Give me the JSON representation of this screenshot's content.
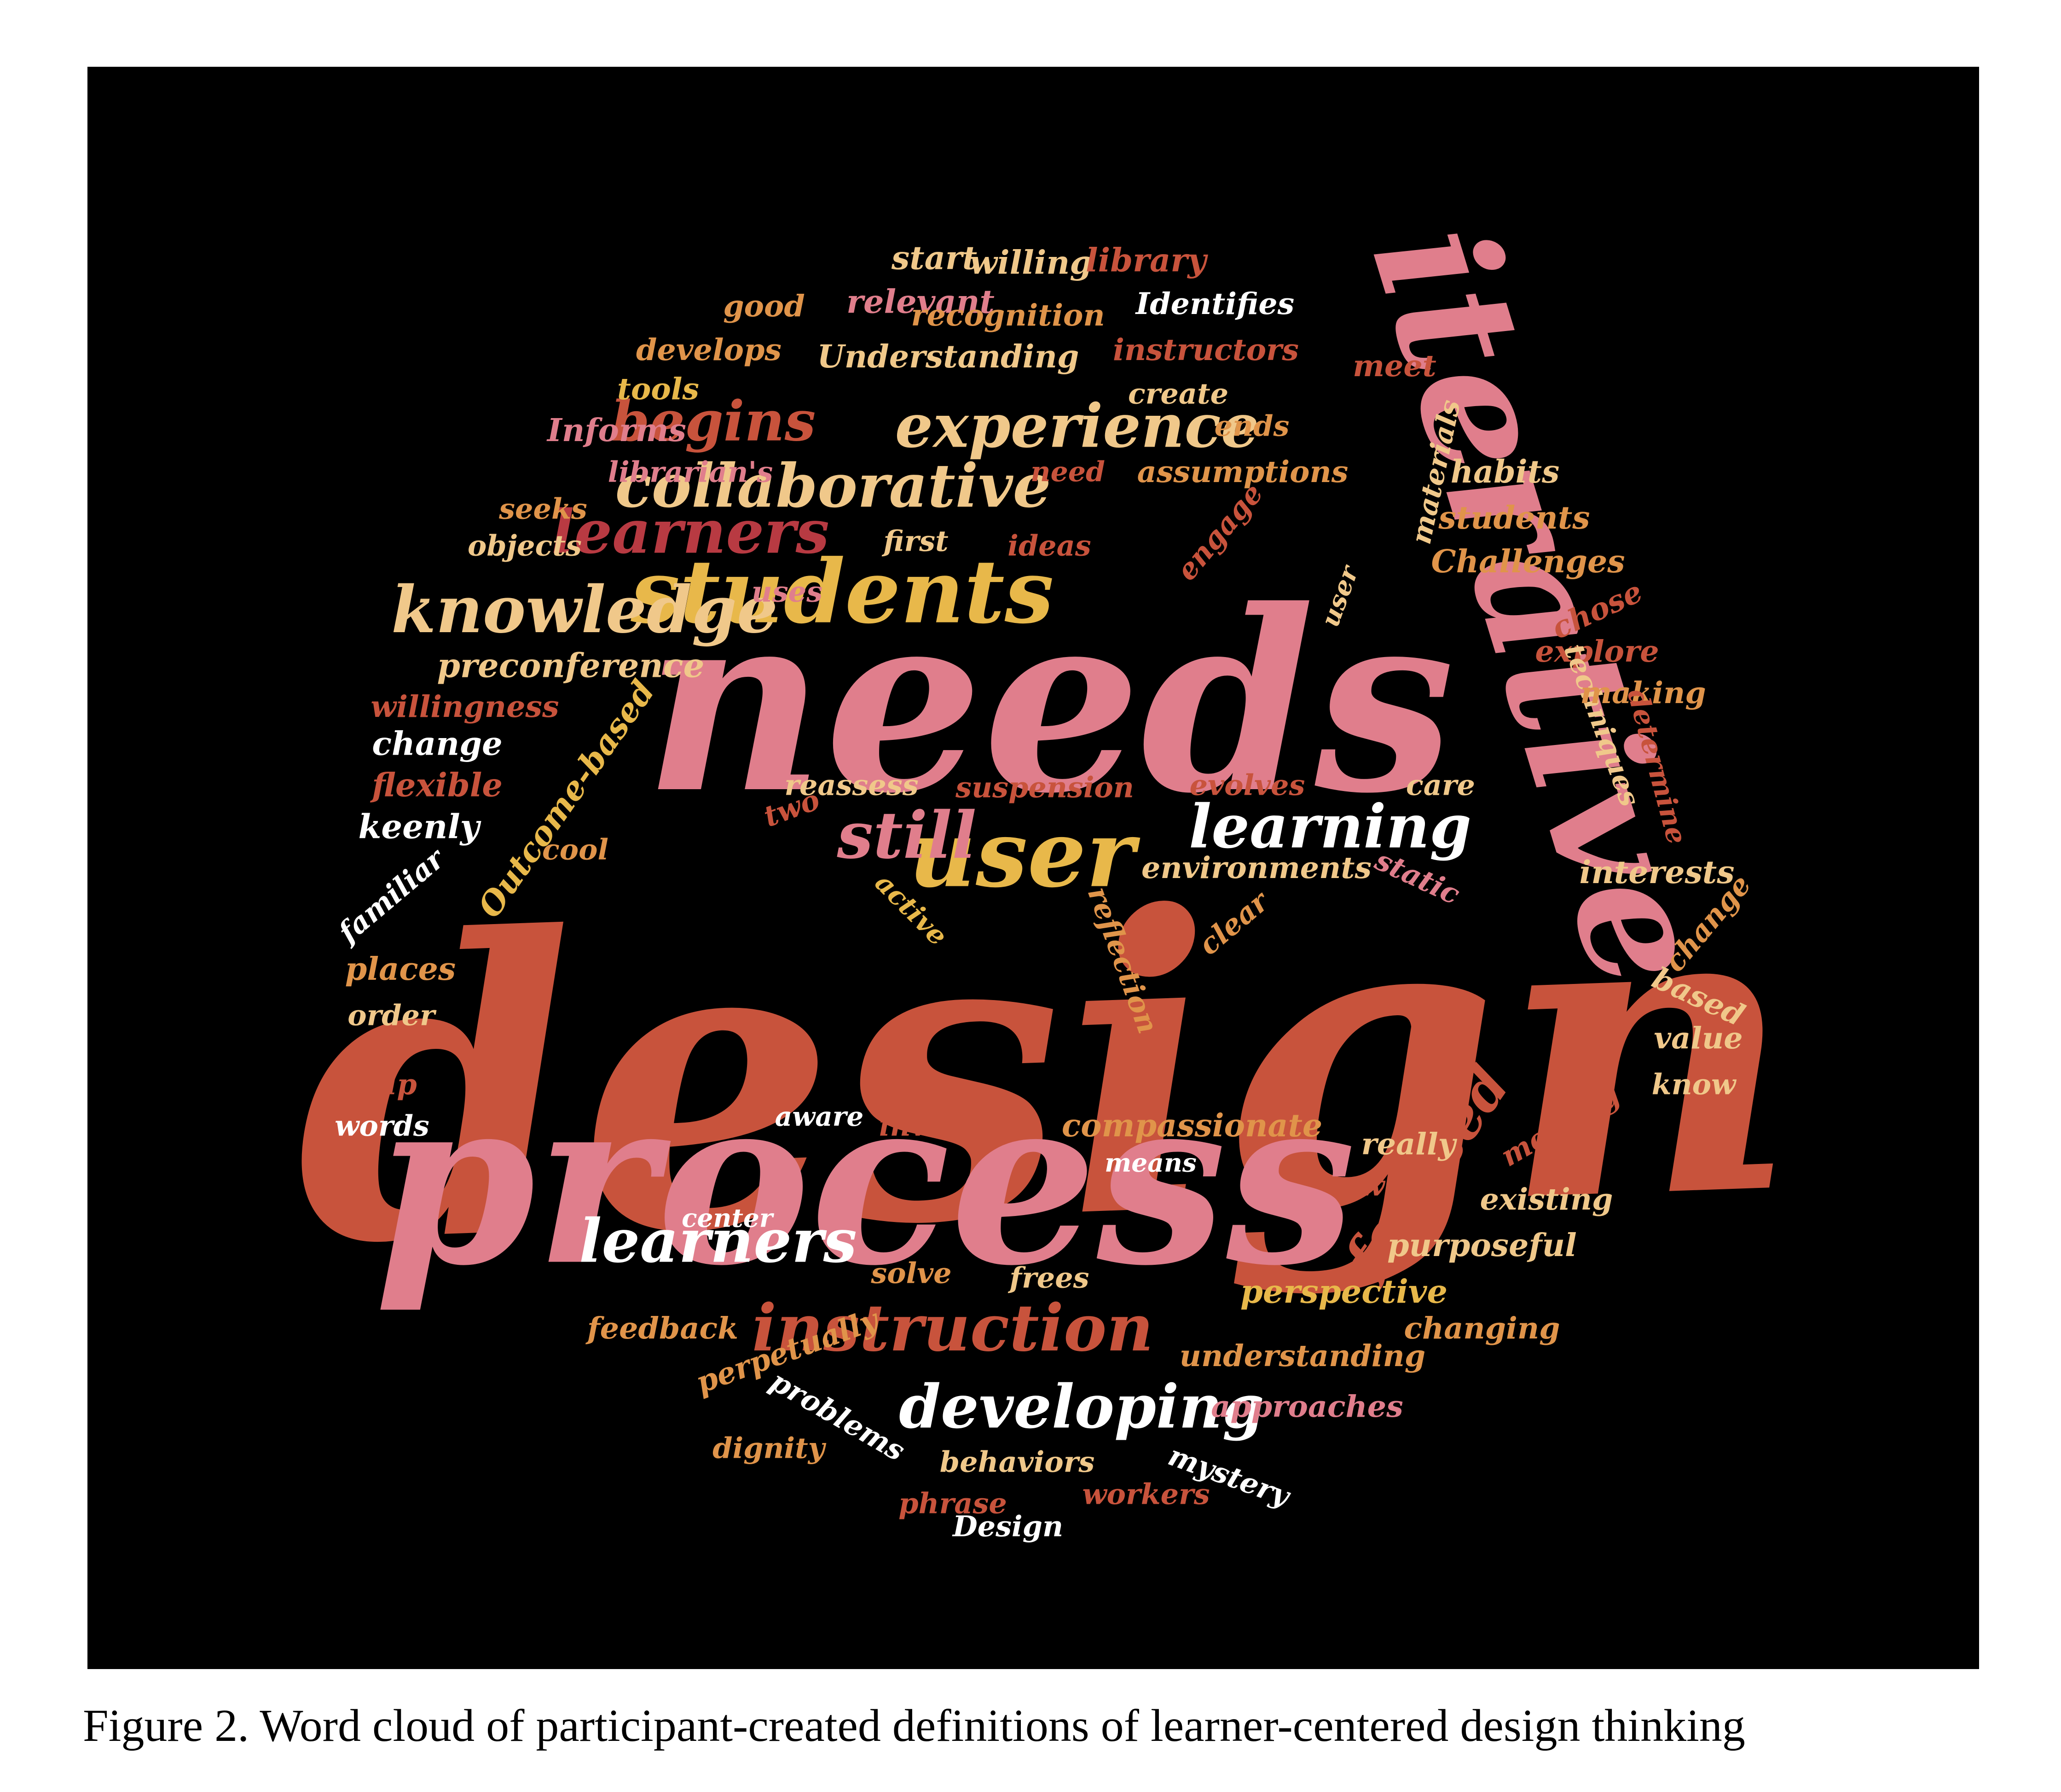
{
  "caption": "Figure 2. Word cloud of participant-created definitions of learner-centered design thinking",
  "colors": {
    "background": "#000000",
    "red": "#c8533c",
    "pink": "#e07e8c",
    "dark_red": "#b83a42",
    "orange": "#e0944a",
    "yellow": "#e8b84a",
    "beige": "#f0c88a",
    "white": "#ffffff"
  },
  "words": [
    {
      "text": "design",
      "color": "red"
    },
    {
      "text": "needs",
      "color": "pink"
    },
    {
      "text": "process",
      "color": "pink"
    },
    {
      "text": "iterative",
      "color": "pink"
    },
    {
      "text": "students",
      "color": "yellow"
    },
    {
      "text": "user",
      "color": "yellow"
    },
    {
      "text": "learning",
      "color": "white"
    },
    {
      "text": "knowledge",
      "color": "beige"
    },
    {
      "text": "collaborative",
      "color": "beige"
    },
    {
      "text": "experience",
      "color": "beige"
    },
    {
      "text": "begins",
      "color": "red"
    },
    {
      "text": "learners",
      "color": "dark_red"
    },
    {
      "text": "learners",
      "color": "white"
    },
    {
      "text": "instruction",
      "color": "red"
    },
    {
      "text": "developing",
      "color": "white"
    },
    {
      "text": "focused",
      "color": "red"
    },
    {
      "text": "still",
      "color": "pink"
    },
    {
      "text": "start",
      "color": "beige"
    },
    {
      "text": "willing",
      "color": "beige"
    },
    {
      "text": "library",
      "color": "red"
    },
    {
      "text": "relevant",
      "color": "pink"
    },
    {
      "text": "good",
      "color": "orange"
    },
    {
      "text": "recognition",
      "color": "orange"
    },
    {
      "text": "Identifies",
      "color": "white"
    },
    {
      "text": "develops",
      "color": "orange"
    },
    {
      "text": "Understanding",
      "color": "beige"
    },
    {
      "text": "instructors",
      "color": "red"
    },
    {
      "text": "meet",
      "color": "red"
    },
    {
      "text": "tools",
      "color": "yellow"
    },
    {
      "text": "create",
      "color": "beige"
    },
    {
      "text": "Informs",
      "color": "pink"
    },
    {
      "text": "ends",
      "color": "orange"
    },
    {
      "text": "materials",
      "color": "beige"
    },
    {
      "text": "librarian's",
      "color": "pink"
    },
    {
      "text": "need",
      "color": "red"
    },
    {
      "text": "assumptions",
      "color": "orange"
    },
    {
      "text": "habits",
      "color": "beige"
    },
    {
      "text": "seeks",
      "color": "orange"
    },
    {
      "text": "students",
      "color": "orange"
    },
    {
      "text": "objects",
      "color": "beige"
    },
    {
      "text": "first",
      "color": "beige"
    },
    {
      "text": "ideas",
      "color": "red"
    },
    {
      "text": "engage",
      "color": "red"
    },
    {
      "text": "Challenges",
      "color": "orange"
    },
    {
      "text": "uses",
      "color": "pink"
    },
    {
      "text": "user",
      "color": "beige"
    },
    {
      "text": "chose",
      "color": "red"
    },
    {
      "text": "explore",
      "color": "red"
    },
    {
      "text": "preconference",
      "color": "beige"
    },
    {
      "text": "techniques",
      "color": "beige"
    },
    {
      "text": "making",
      "color": "orange"
    },
    {
      "text": "willingness",
      "color": "red"
    },
    {
      "text": "determine",
      "color": "red"
    },
    {
      "text": "change",
      "color": "white"
    },
    {
      "text": "Outcome-based",
      "color": "yellow"
    },
    {
      "text": "flexible",
      "color": "red"
    },
    {
      "text": "reassess",
      "color": "beige"
    },
    {
      "text": "suspension",
      "color": "red"
    },
    {
      "text": "evolves",
      "color": "red"
    },
    {
      "text": "care",
      "color": "beige"
    },
    {
      "text": "two",
      "color": "red"
    },
    {
      "text": "keenly",
      "color": "white"
    },
    {
      "text": "cool",
      "color": "orange"
    },
    {
      "text": "environments",
      "color": "beige"
    },
    {
      "text": "static",
      "color": "pink"
    },
    {
      "text": "interests",
      "color": "beige"
    },
    {
      "text": "familiar",
      "color": "white"
    },
    {
      "text": "active",
      "color": "yellow"
    },
    {
      "text": "reflection",
      "color": "orange"
    },
    {
      "text": "clear",
      "color": "orange"
    },
    {
      "text": "change",
      "color": "orange"
    },
    {
      "text": "places",
      "color": "orange"
    },
    {
      "text": "based",
      "color": "beige"
    },
    {
      "text": "order",
      "color": "beige"
    },
    {
      "text": "value",
      "color": "beige"
    },
    {
      "text": "help",
      "color": "red"
    },
    {
      "text": "know",
      "color": "beige"
    },
    {
      "text": "words",
      "color": "white"
    },
    {
      "text": "aware",
      "color": "white"
    },
    {
      "text": "involves",
      "color": "red"
    },
    {
      "text": "compassionate",
      "color": "orange"
    },
    {
      "text": "really",
      "color": "beige"
    },
    {
      "text": "meeting",
      "color": "red"
    },
    {
      "text": "means",
      "color": "white"
    },
    {
      "text": "way",
      "color": "red"
    },
    {
      "text": "existing",
      "color": "beige"
    },
    {
      "text": "center",
      "color": "white"
    },
    {
      "text": "purposeful",
      "color": "beige"
    },
    {
      "text": "solve",
      "color": "orange"
    },
    {
      "text": "frees",
      "color": "beige"
    },
    {
      "text": "perspective",
      "color": "yellow"
    },
    {
      "text": "feedback",
      "color": "orange"
    },
    {
      "text": "changing",
      "color": "orange"
    },
    {
      "text": "perpetually",
      "color": "orange"
    },
    {
      "text": "understanding",
      "color": "orange"
    },
    {
      "text": "problems",
      "color": "white"
    },
    {
      "text": "approaches",
      "color": "pink"
    },
    {
      "text": "dignity",
      "color": "orange"
    },
    {
      "text": "behaviors",
      "color": "beige"
    },
    {
      "text": "mystery",
      "color": "white"
    },
    {
      "text": "phrase",
      "color": "red"
    },
    {
      "text": "workers",
      "color": "red"
    },
    {
      "text": "Design",
      "color": "white"
    }
  ]
}
